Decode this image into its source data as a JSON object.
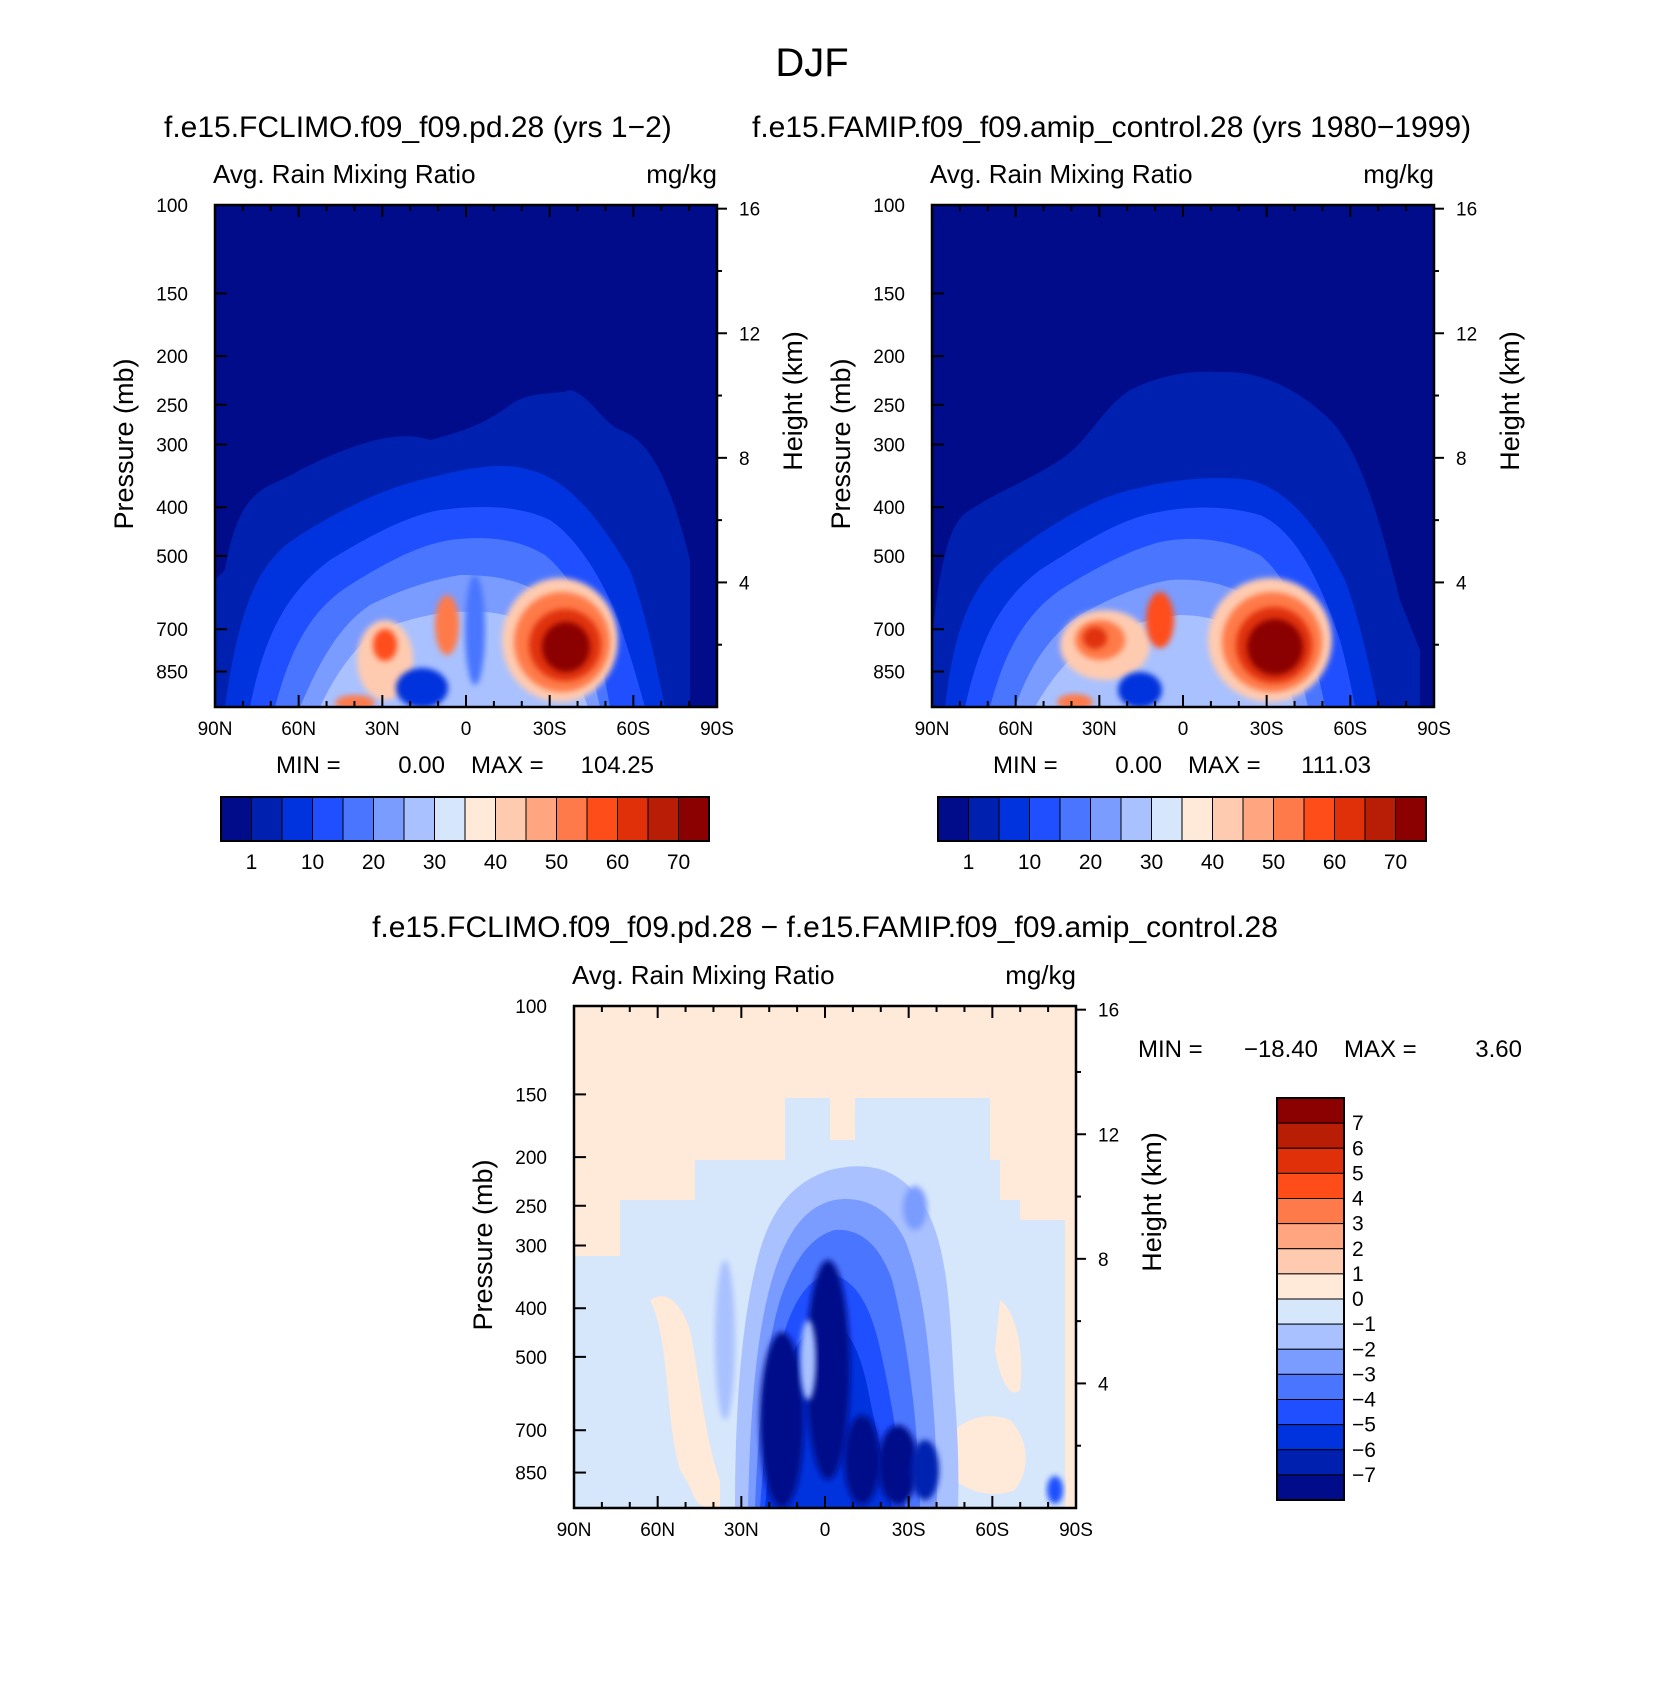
{
  "page_title": "DJF",
  "colors": {
    "abs_scale": [
      "#000c8a",
      "#0020b0",
      "#0033dd",
      "#1f4fff",
      "#4a76ff",
      "#7a9bff",
      "#a9c1ff",
      "#d6e7fb",
      "#ffe9d8",
      "#ffcbb0",
      "#ffa680",
      "#ff7a4a",
      "#ff4d1a",
      "#e0300a",
      "#b81e05",
      "#8b0000"
    ],
    "diff_scale": [
      "#000c8a",
      "#0020b0",
      "#0033dd",
      "#1f4fff",
      "#4a76ff",
      "#7a9bff",
      "#a9c1ff",
      "#d6e7fb",
      "#ffe9d8",
      "#ffcbb0",
      "#ffa680",
      "#ff7a4a",
      "#ff4d1a",
      "#e0300a",
      "#b81e05",
      "#8b0000"
    ]
  },
  "chart_data": [
    {
      "type": "heatmap",
      "id": "panel-left",
      "title": "f.e15.FCLIMO.f09_f09.pd.28 (yrs 1−2)",
      "variable_label": "Avg. Rain Mixing Ratio",
      "units_label": "mg/kg",
      "ylabel": "Pressure (mb)",
      "ylabel_right": "Height (km)",
      "x_tick_labels": [
        "90N",
        "60N",
        "30N",
        "0",
        "30S",
        "60S",
        "90S"
      ],
      "x_range": [
        90,
        -90
      ],
      "y_tick_labels": [
        "100",
        "150",
        "200",
        "250",
        "300",
        "400",
        "500",
        "700",
        "850"
      ],
      "y_ticks": [
        100,
        150,
        200,
        250,
        300,
        400,
        500,
        700,
        850
      ],
      "y_range_pressure": [
        100,
        1000
      ],
      "height_tick_labels": [
        "16",
        "12",
        "8",
        "4"
      ],
      "height_ticks": [
        16,
        12,
        8,
        4
      ],
      "min_label": "MIN =",
      "min_value": "0.00",
      "max_label": "MAX =",
      "max_value": "104.25",
      "min": 0.0,
      "max": 104.25,
      "colorbar_labels": [
        "1",
        "10",
        "20",
        "30",
        "40",
        "50",
        "60",
        "70"
      ],
      "contour_levels": [
        0,
        1,
        5,
        10,
        15,
        20,
        25,
        30,
        35,
        40,
        45,
        50,
        55,
        60,
        65,
        70
      ]
    },
    {
      "type": "heatmap",
      "id": "panel-right",
      "title": "f.e15.FAMIP.f09_f09.amip_control.28 (yrs 1980−1999)",
      "variable_label": "Avg. Rain Mixing Ratio",
      "units_label": "mg/kg",
      "ylabel": "Pressure (mb)",
      "ylabel_right": "Height (km)",
      "x_tick_labels": [
        "90N",
        "60N",
        "30N",
        "0",
        "30S",
        "60S",
        "90S"
      ],
      "x_range": [
        90,
        -90
      ],
      "y_tick_labels": [
        "100",
        "150",
        "200",
        "250",
        "300",
        "400",
        "500",
        "700",
        "850"
      ],
      "y_ticks": [
        100,
        150,
        200,
        250,
        300,
        400,
        500,
        700,
        850
      ],
      "y_range_pressure": [
        100,
        1000
      ],
      "height_tick_labels": [
        "16",
        "12",
        "8",
        "4"
      ],
      "height_ticks": [
        16,
        12,
        8,
        4
      ],
      "min_label": "MIN =",
      "min_value": "0.00",
      "max_label": "MAX =",
      "max_value": "111.03",
      "min": 0.0,
      "max": 111.03,
      "colorbar_labels": [
        "1",
        "10",
        "20",
        "30",
        "40",
        "50",
        "60",
        "70"
      ],
      "contour_levels": [
        0,
        1,
        5,
        10,
        15,
        20,
        25,
        30,
        35,
        40,
        45,
        50,
        55,
        60,
        65,
        70
      ]
    },
    {
      "type": "heatmap",
      "id": "panel-diff",
      "title": "f.e15.FCLIMO.f09_f09.pd.28 − f.e15.FAMIP.f09_f09.amip_control.28",
      "variable_label": "Avg. Rain Mixing Ratio",
      "units_label": "mg/kg",
      "ylabel": "Pressure (mb)",
      "ylabel_right": "Height (km)",
      "x_tick_labels": [
        "90N",
        "60N",
        "30N",
        "0",
        "30S",
        "60S",
        "90S"
      ],
      "x_range": [
        90,
        -90
      ],
      "y_tick_labels": [
        "100",
        "150",
        "200",
        "250",
        "300",
        "400",
        "500",
        "700",
        "850"
      ],
      "y_ticks": [
        100,
        150,
        200,
        250,
        300,
        400,
        500,
        700,
        850
      ],
      "y_range_pressure": [
        100,
        1000
      ],
      "height_tick_labels": [
        "16",
        "12",
        "8",
        "4"
      ],
      "height_ticks": [
        16,
        12,
        8,
        4
      ],
      "min_label": "MIN =",
      "min_value": "−18.40",
      "max_label": "MAX =",
      "max_value": "3.60",
      "min": -18.4,
      "max": 3.6,
      "colorbar_labels": [
        "7",
        "6",
        "5",
        "4",
        "3",
        "2",
        "1",
        "0",
        "−1",
        "−2",
        "−3",
        "−4",
        "−5",
        "−6",
        "−7"
      ],
      "contour_levels": [
        -7,
        -6,
        -5,
        -4,
        -3,
        -2,
        -1,
        0,
        1,
        2,
        3,
        4,
        5,
        6,
        7
      ]
    }
  ]
}
